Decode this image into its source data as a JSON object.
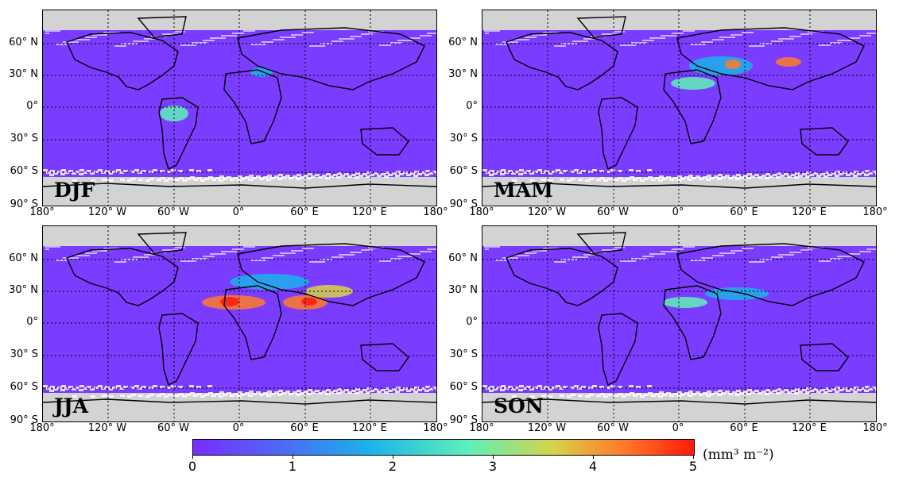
{
  "panels": [
    {
      "season": "DJF"
    },
    {
      "season": "MAM"
    },
    {
      "season": "JJA"
    },
    {
      "season": "SON"
    }
  ],
  "lat_labels": [
    "60° N",
    "30° N",
    "0°",
    "30° S",
    "60° S",
    "90° S"
  ],
  "lon_labels": [
    "180°",
    "120° W",
    "60° W",
    "0°",
    "60° E",
    "120° E",
    "180°"
  ],
  "colorbar": {
    "ticks": [
      "0",
      "1",
      "2",
      "3",
      "4",
      "5"
    ],
    "unit": "(mm³ m⁻²)",
    "colors": [
      "#7b2cff",
      "#4d6af5",
      "#1bb2ea",
      "#5ef0b8",
      "#d8d24a",
      "#ff7a2a",
      "#ff1a0a"
    ]
  },
  "map_colors": {
    "background": "#d3d3d3",
    "ocean_field": "#7a3cff",
    "land_line": "#000000"
  }
}
